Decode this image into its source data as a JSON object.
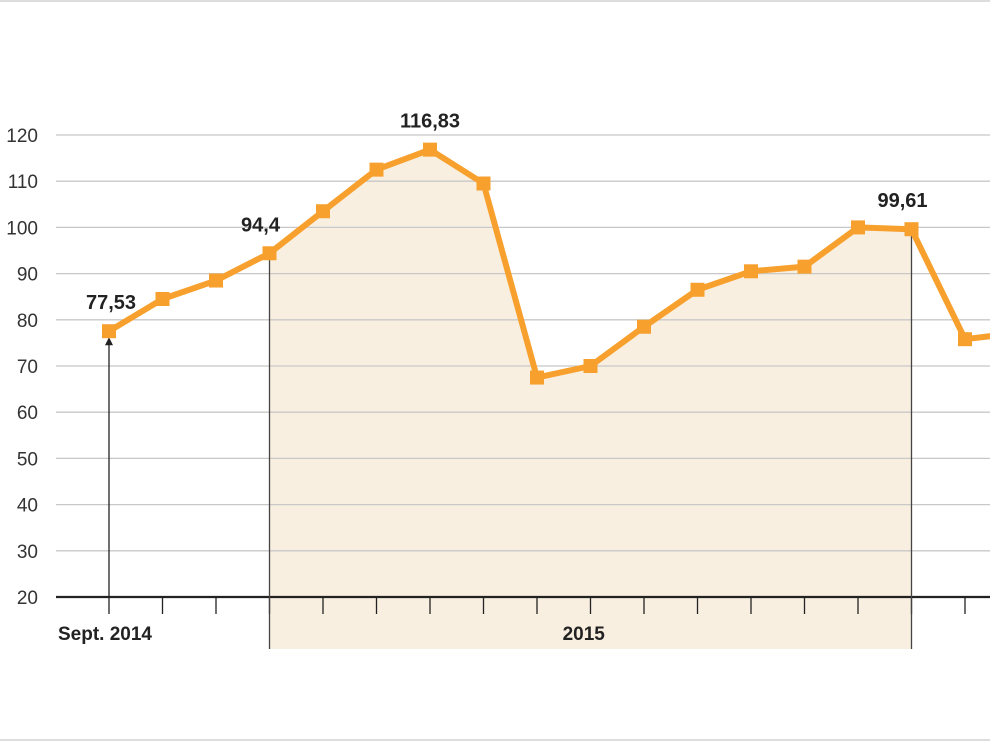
{
  "chart_data": {
    "type": "line",
    "title": "",
    "xlabel": "",
    "ylabel": "",
    "ylim": [
      20,
      120
    ],
    "yticks": [
      "20",
      "30",
      "40",
      "50",
      "60",
      "70",
      "80",
      "90",
      "100",
      "110",
      "120"
    ],
    "grid": true,
    "colors": {
      "line": "#f7a02e",
      "fill": "#f8efe0",
      "grid": "#c8c8c8",
      "axis": "#222222"
    },
    "x_labels": [
      {
        "index": 0,
        "text": "Sept. 2014"
      },
      {
        "index": 9,
        "text": "2015"
      }
    ],
    "series": [
      {
        "values": [
          77.53,
          84.5,
          88.5,
          94.4,
          103.5,
          112.5,
          116.83,
          109.5,
          67.5,
          70,
          78.5,
          86.5,
          90.5,
          91.5,
          100,
          99.61,
          75.8,
          77.2
        ]
      }
    ],
    "highlight_range": [
      3,
      15
    ],
    "annotations": [
      {
        "index": 0,
        "text": "77,53"
      },
      {
        "index": 3,
        "text": "94,4"
      },
      {
        "index": 6,
        "text": "116,83"
      },
      {
        "index": 15,
        "text": "99,61"
      }
    ]
  }
}
